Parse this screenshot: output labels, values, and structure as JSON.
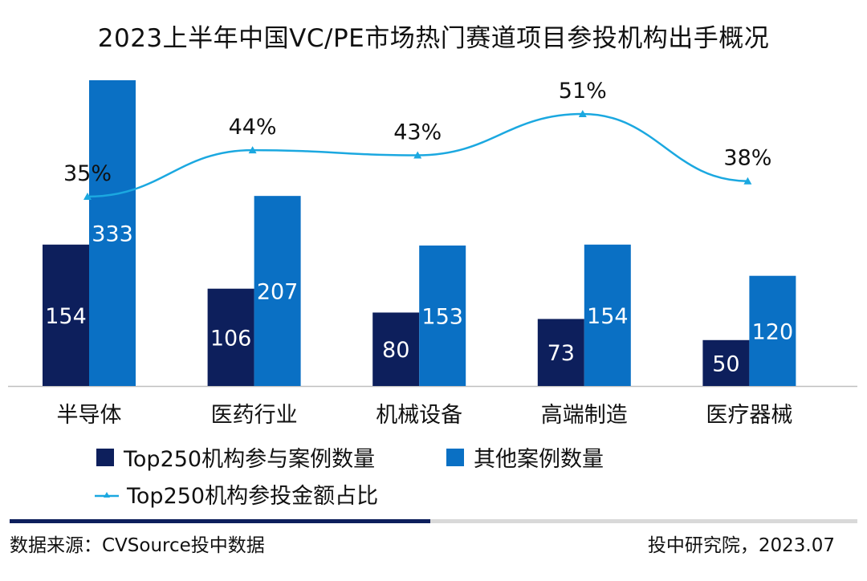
{
  "colors": {
    "top250": "#0d1f5c",
    "other": "#0a70c4",
    "line": "#1ba8e0",
    "axis": "#bfbfbf",
    "footer_dark": "#0d1f5c",
    "footer_light": "#d9d9d9"
  },
  "chart_data": {
    "type": "bar",
    "title": "2023上半年中国VC/PE市场热门赛道项目参投机构出手概况",
    "categories": [
      "半导体",
      "医药行业",
      "机械设备",
      "高端制造",
      "医疗器械"
    ],
    "series": [
      {
        "name": "Top250机构参与案例数量",
        "kind": "bar",
        "values": [
          154,
          106,
          80,
          73,
          50
        ]
      },
      {
        "name": "其他案例数量",
        "kind": "bar",
        "values": [
          333,
          207,
          153,
          154,
          120
        ]
      },
      {
        "name": "Top250机构参投金额占比",
        "kind": "line",
        "values": [
          35,
          44,
          43,
          51,
          38
        ],
        "labels": [
          "35%",
          "44%",
          "43%",
          "51%",
          "38%"
        ]
      }
    ],
    "ylim": [
      0,
      380
    ],
    "line_ylim": [
      0,
      60
    ],
    "legend": [
      "Top250机构参与案例数量",
      "其他案例数量",
      "Top250机构参投金额占比"
    ]
  },
  "footer": {
    "source": "数据来源：CVSource投中数据",
    "credit": "投中研究院，2023.07"
  }
}
